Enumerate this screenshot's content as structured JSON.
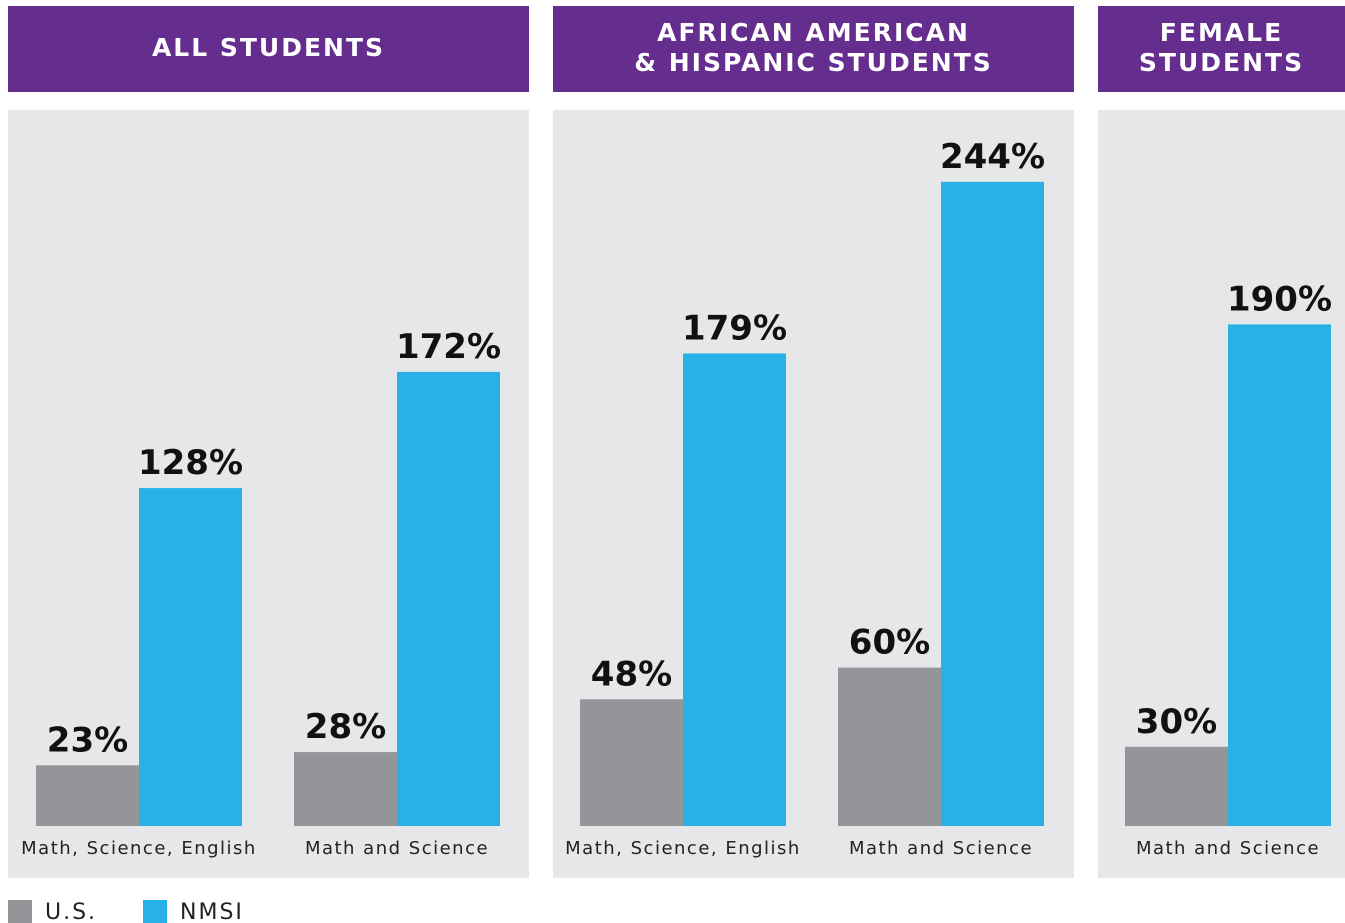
{
  "chart_data": [
    {
      "type": "bar",
      "title": [
        "ALL STUDENTS"
      ],
      "categories": [
        "Math, Science, English",
        "Math and Science"
      ],
      "series": [
        {
          "name": "U.S.",
          "color": "#939598",
          "values": [
            23,
            28
          ],
          "value_labels": [
            "23%",
            "28%"
          ]
        },
        {
          "name": "NMSI",
          "color": "#27b1e6",
          "values": [
            128,
            172
          ],
          "value_labels": [
            "128%",
            "172%"
          ]
        }
      ]
    },
    {
      "type": "bar",
      "title": [
        "AFRICAN AMERICAN",
        "& HISPANIC STUDENTS"
      ],
      "categories": [
        "Math, Science, English",
        "Math and Science"
      ],
      "series": [
        {
          "name": "U.S.",
          "color": "#939598",
          "values": [
            48,
            60
          ],
          "value_labels": [
            "48%",
            "60%"
          ]
        },
        {
          "name": "NMSI",
          "color": "#27b1e6",
          "values": [
            179,
            244
          ],
          "value_labels": [
            "179%",
            "244%"
          ]
        }
      ]
    },
    {
      "type": "bar",
      "title": [
        "FEMALE",
        "STUDENTS"
      ],
      "categories": [
        "Math and Science"
      ],
      "series": [
        {
          "name": "U.S.",
          "color": "#939598",
          "values": [
            30
          ],
          "value_labels": [
            "30%"
          ]
        },
        {
          "name": "NMSI",
          "color": "#27b1e6",
          "values": [
            190
          ],
          "value_labels": [
            "190%"
          ]
        }
      ]
    }
  ]
}
